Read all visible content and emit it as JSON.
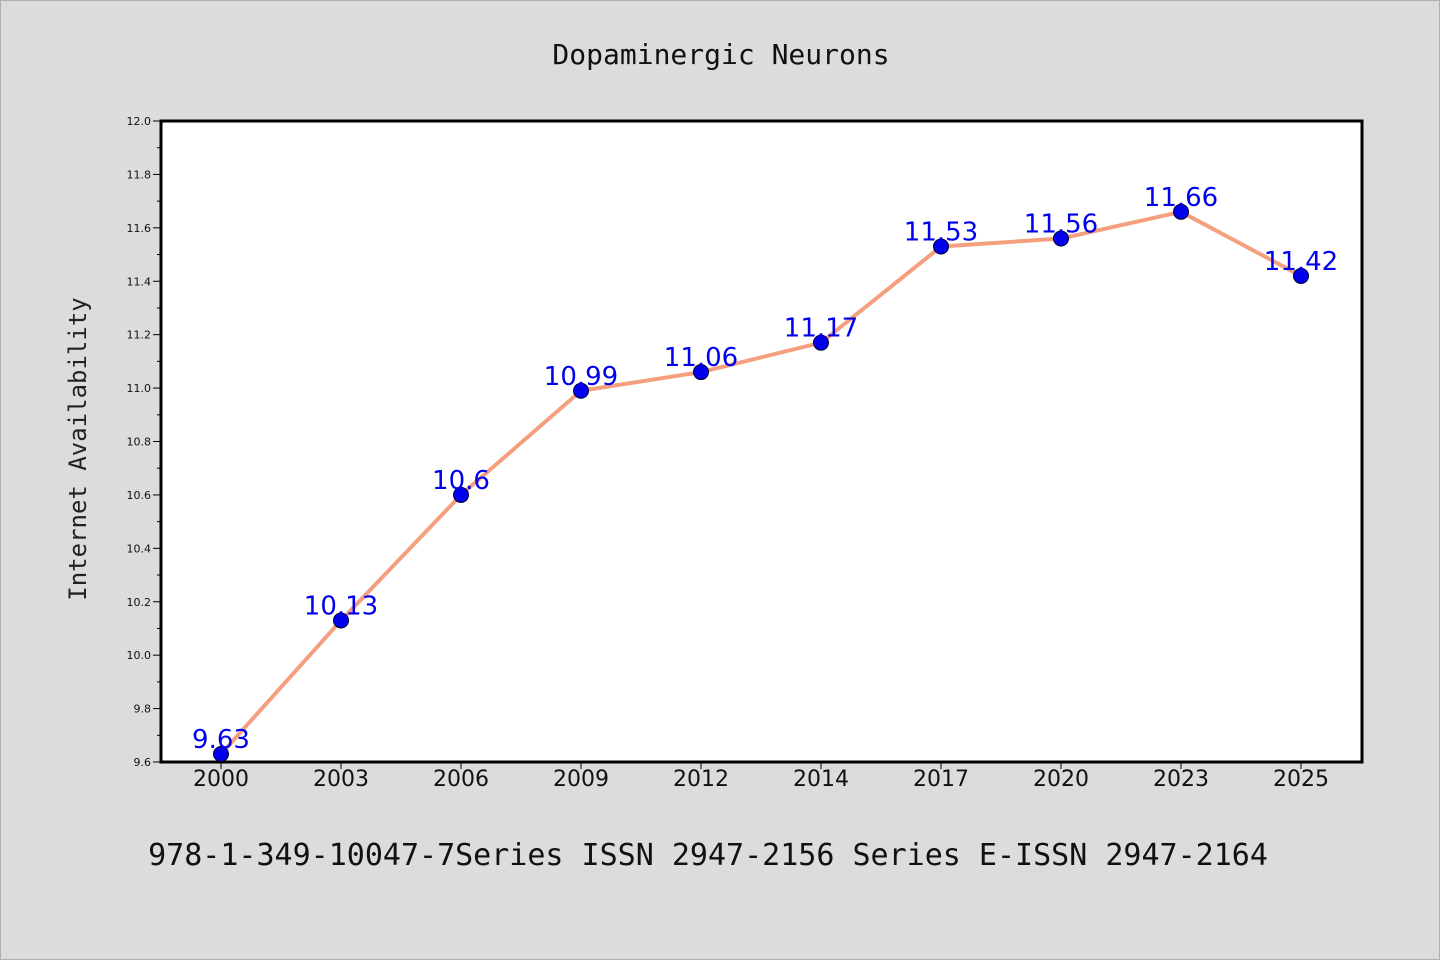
{
  "chart_data": {
    "type": "line",
    "title": "Dopaminergic Neurons",
    "xlabel": "",
    "ylabel": "Internet Availability",
    "categories": [
      "2000",
      "2003",
      "2006",
      "2009",
      "2012",
      "2014",
      "2017",
      "2020",
      "2023",
      "2025"
    ],
    "series": [
      {
        "values": [
          9.63,
          10.13,
          10.6,
          10.99,
          11.06,
          11.17,
          11.53,
          11.56,
          11.66,
          11.42
        ],
        "data_labels": [
          "9.63",
          "10.13",
          "10.6",
          "10.99",
          "11.06",
          "11.17",
          "11.53",
          "11.56",
          "11.66",
          "11.42"
        ],
        "line_color": "#f4a07f",
        "marker_color": "#0000ee",
        "label_color": "#0000ee"
      }
    ],
    "ylim": [
      9.6,
      12.0
    ],
    "yticks": [
      "9.6",
      "9.8",
      "10.0",
      "10.2",
      "10.4",
      "10.6",
      "10.8",
      "11.0",
      "11.2",
      "11.4",
      "11.6",
      "11.8",
      "12.0"
    ],
    "grid": false,
    "legend": "none"
  },
  "footer": {
    "text": "978-1-349-10047-7Series ISSN 2947-2156 Series E-ISSN 2947-2164"
  },
  "colors": {
    "background": "#dcdcdc",
    "plot_background": "#ffffff",
    "axes": "#000000"
  }
}
